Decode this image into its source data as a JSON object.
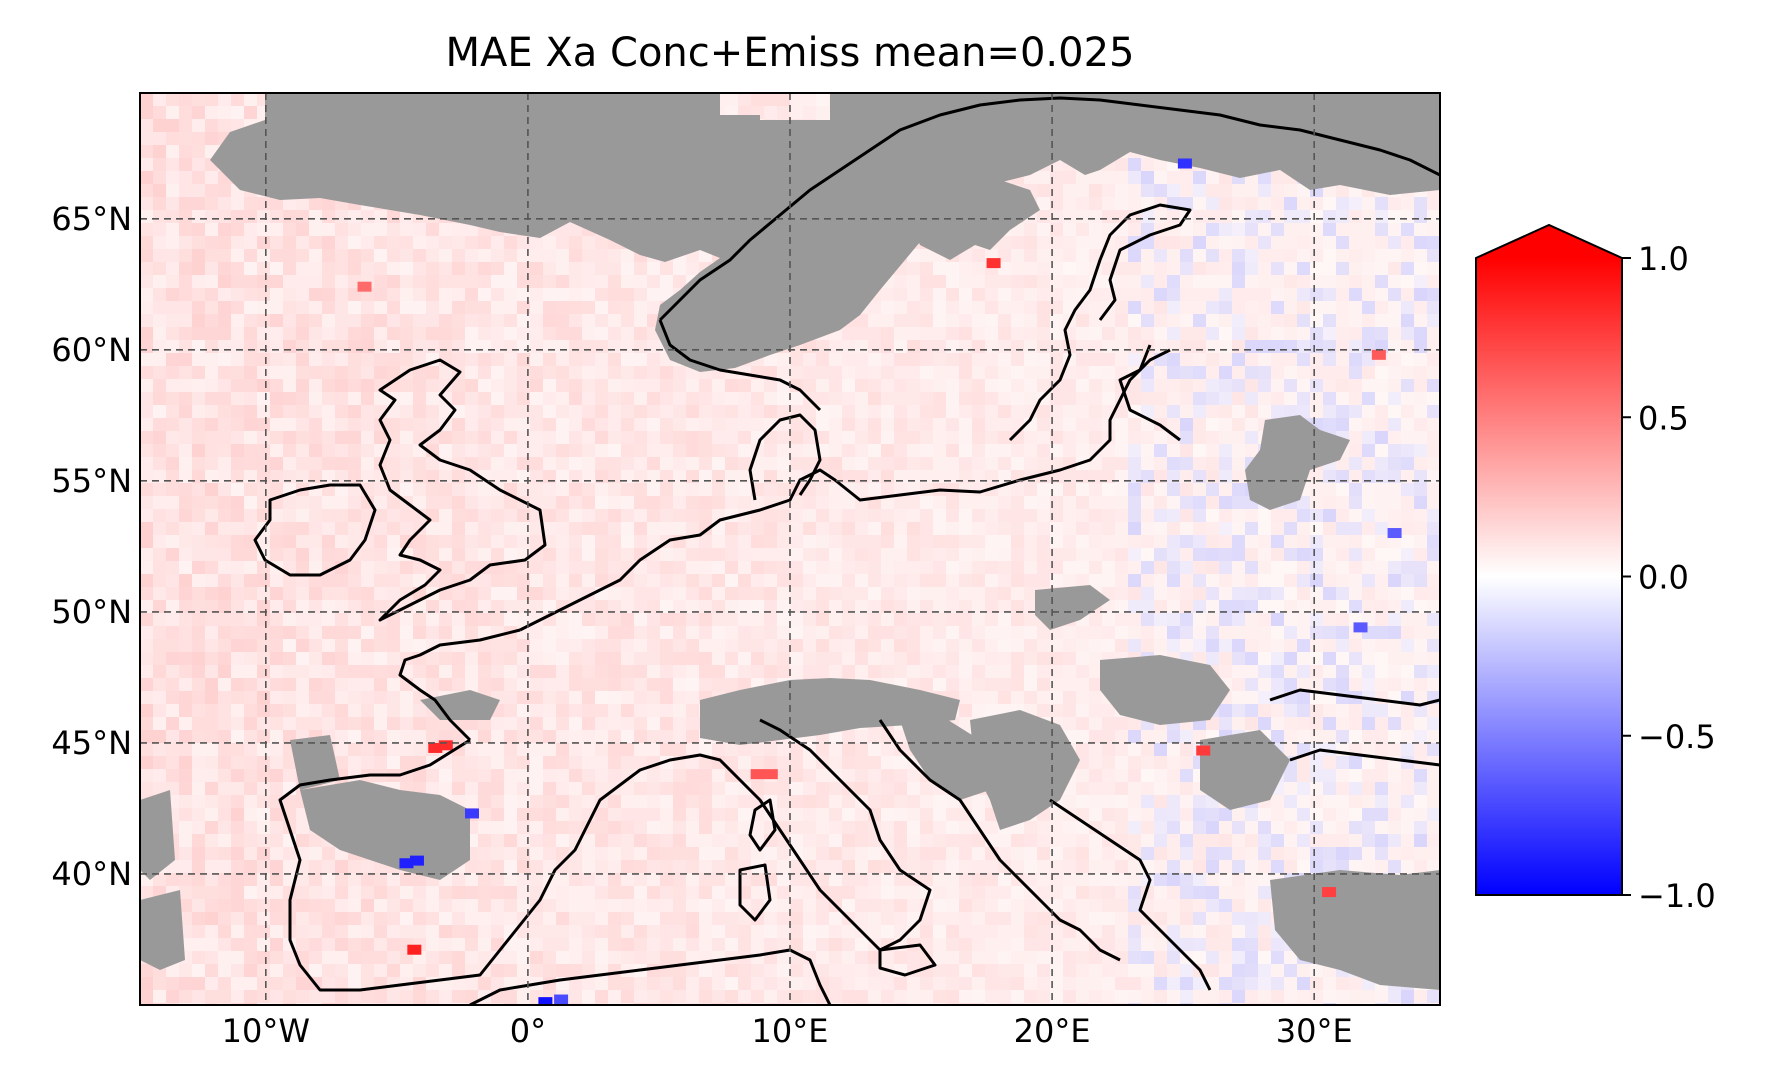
{
  "title": "MAE Xa Conc+Emiss mean=0.025",
  "map": {
    "projection": "PlateCarree",
    "lon_range": [
      -14.8,
      34.8
    ],
    "lat_range": [
      35.0,
      69.8
    ],
    "gridlines": true,
    "gridline_style": "dashed",
    "lon_ticks": [
      {
        "value": -10,
        "label": "10°W"
      },
      {
        "value": 0,
        "label": "0°"
      },
      {
        "value": 10,
        "label": "10°E"
      },
      {
        "value": 20,
        "label": "20°E"
      },
      {
        "value": 30,
        "label": "30°E"
      }
    ],
    "lat_ticks": [
      {
        "value": 40,
        "label": "40°N"
      },
      {
        "value": 45,
        "label": "45°N"
      },
      {
        "value": 50,
        "label": "50°N"
      },
      {
        "value": 55,
        "label": "55°N"
      },
      {
        "value": 60,
        "label": "60°N"
      },
      {
        "value": 65,
        "label": "65°N"
      }
    ],
    "missing_color": "#999999",
    "field_description": "mostly light red (slightly positive) over western and central Europe and the Atlantic; near white / light blue in the east; grey masked regions over Norway, the North Atlantic, Alps, Carpathians, Balkans, Anatolia, Iberian interior and the Baltic/Belarus area; isolated strong red pixels in France and northern Italy, blue pixels in central Spain and the Algerian coast"
  },
  "colorbar": {
    "cmap": "bwr",
    "vmin": -1.0,
    "vmax": 1.0,
    "extend": "max",
    "ticks": [
      {
        "value": 1.0,
        "label": "1.0"
      },
      {
        "value": 0.5,
        "label": "0.5"
      },
      {
        "value": 0.0,
        "label": "0.0"
      },
      {
        "value": -0.5,
        "label": "−0.5"
      },
      {
        "value": -1.0,
        "label": "−1.0"
      }
    ]
  },
  "colors": {
    "positive": "#ff0000",
    "neutral": "#ffffff",
    "negative": "#0000ff",
    "coastline": "#000000",
    "grid": "#555555"
  }
}
